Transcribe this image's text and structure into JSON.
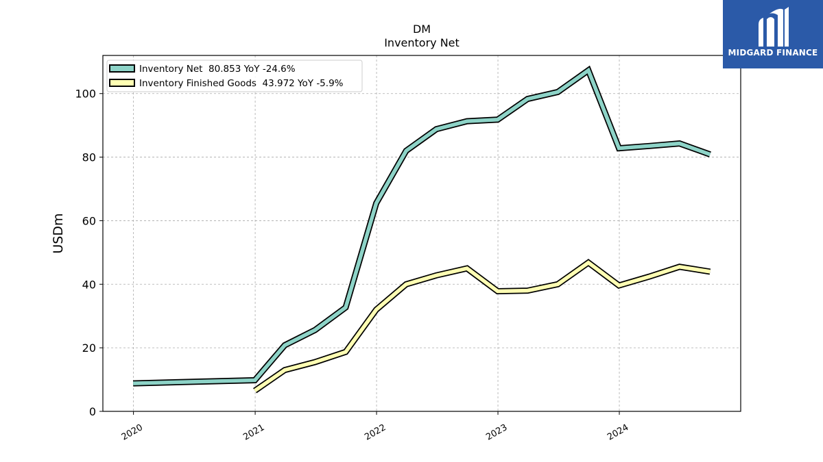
{
  "brand": {
    "name": "MIDGARD FINANCE",
    "logo_icon": "midgard-m-logo-icon",
    "bg_color": "#2b5aa8"
  },
  "chart_data": {
    "type": "line",
    "title": "DM",
    "subtitle": "Inventory Net",
    "xlabel": "",
    "ylabel": "USDm",
    "ylim": [
      0,
      112
    ],
    "yticks": [
      0,
      20,
      40,
      60,
      80,
      100
    ],
    "xticks": [
      "2020",
      "2021",
      "2022",
      "2023",
      "2024"
    ],
    "grid": true,
    "legend_position": "top-left",
    "series": [
      {
        "name": "Inventory Net  80.853 YoY -24.6%",
        "color": "#8dd3c7",
        "x": [
          "2019-12-31",
          "2020-12-31",
          "2021-03-31",
          "2021-06-30",
          "2021-09-30",
          "2021-12-31",
          "2022-03-31",
          "2022-06-30",
          "2022-09-30",
          "2022-12-31",
          "2023-03-31",
          "2023-06-30",
          "2023-09-30",
          "2023-12-31",
          "2024-03-31",
          "2024-06-30",
          "2024-09-30"
        ],
        "values": [
          8.8,
          9.8,
          20.8,
          25.6,
          32.7,
          65.5,
          82.0,
          88.8,
          91.3,
          91.8,
          98.3,
          100.5,
          107.3,
          82.8,
          83.5,
          84.3,
          80.85
        ]
      },
      {
        "name": "Inventory Finished Goods  43.972 YoY -5.9%",
        "color": "#ffffb3",
        "x": [
          "2020-12-31",
          "2021-03-31",
          "2021-06-30",
          "2021-09-30",
          "2021-12-31",
          "2022-03-31",
          "2022-06-30",
          "2022-09-30",
          "2022-12-31",
          "2023-03-31",
          "2023-06-30",
          "2023-09-30",
          "2023-12-31",
          "2024-03-31",
          "2024-06-30",
          "2024-09-30"
        ],
        "values": [
          6.5,
          13.0,
          15.5,
          18.7,
          32.0,
          40.0,
          42.8,
          45.0,
          37.8,
          38.0,
          40.0,
          46.8,
          39.6,
          42.4,
          45.5,
          43.97
        ]
      }
    ]
  }
}
